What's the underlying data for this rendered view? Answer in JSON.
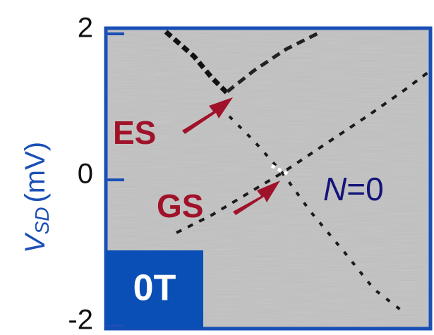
{
  "chart_data": {
    "type": "heatmap",
    "ylabel": {
      "symbol": "V",
      "subscript": "SD",
      "unit": "(mV)"
    },
    "ylim": [
      -2,
      2
    ],
    "yticks": [
      -2,
      0,
      2
    ],
    "axis_color": "#1a4fb5",
    "annotations": [
      {
        "text": "ES"
      },
      {
        "text": "GS"
      },
      {
        "symbol": "N",
        "text": "=0"
      },
      {
        "text": "0T"
      }
    ]
  }
}
